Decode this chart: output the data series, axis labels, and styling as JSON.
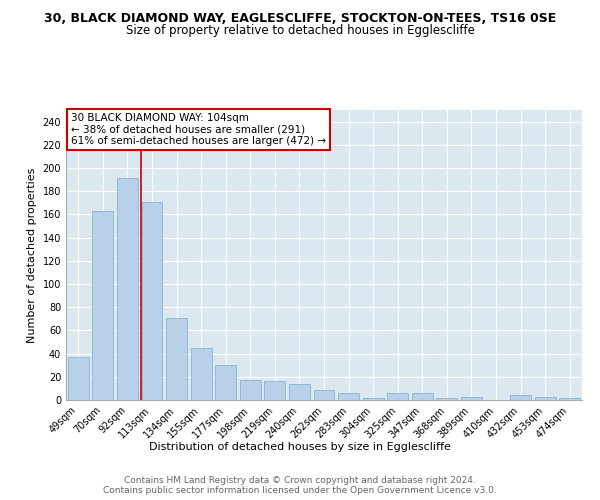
{
  "title1": "30, BLACK DIAMOND WAY, EAGLESCLIFFE, STOCKTON-ON-TEES, TS16 0SE",
  "title2": "Size of property relative to detached houses in Egglescliffe",
  "xlabel": "Distribution of detached houses by size in Egglescliffe",
  "ylabel": "Number of detached properties",
  "categories": [
    "49sqm",
    "70sqm",
    "92sqm",
    "113sqm",
    "134sqm",
    "155sqm",
    "177sqm",
    "198sqm",
    "219sqm",
    "240sqm",
    "262sqm",
    "283sqm",
    "304sqm",
    "325sqm",
    "347sqm",
    "368sqm",
    "389sqm",
    "410sqm",
    "432sqm",
    "453sqm",
    "474sqm"
  ],
  "values": [
    37,
    163,
    191,
    171,
    71,
    45,
    30,
    17,
    16,
    14,
    9,
    6,
    2,
    6,
    6,
    2,
    3,
    0,
    4,
    3,
    2
  ],
  "bar_color": "#b8d0e8",
  "bar_edgecolor": "#7aadd4",
  "bar_width": 0.85,
  "vline_color": "#cc0000",
  "annotation_text": "30 BLACK DIAMOND WAY: 104sqm\n← 38% of detached houses are smaller (291)\n61% of semi-detached houses are larger (472) →",
  "annotation_box_color": "white",
  "annotation_box_edgecolor": "#cc0000",
  "ylim": [
    0,
    250
  ],
  "yticks": [
    0,
    20,
    40,
    60,
    80,
    100,
    120,
    140,
    160,
    180,
    200,
    220,
    240
  ],
  "plot_bg_color": "#dce8f0",
  "grid_color": "white",
  "footer_line1": "Contains HM Land Registry data © Crown copyright and database right 2024.",
  "footer_line2": "Contains public sector information licensed under the Open Government Licence v3.0.",
  "title_fontsize": 9,
  "subtitle_fontsize": 8.5,
  "axis_label_fontsize": 8,
  "tick_fontsize": 7,
  "annotation_fontsize": 7.5,
  "footer_fontsize": 6.5
}
